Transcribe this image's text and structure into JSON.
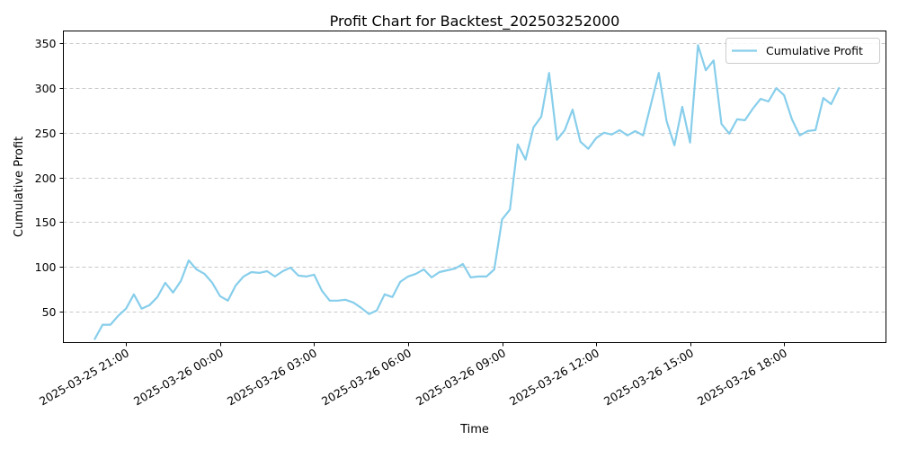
{
  "chart_data": {
    "type": "line",
    "title": "Profit Chart for Backtest_202503252000",
    "xlabel": "Time",
    "ylabel": "Cumulative Profit",
    "x_start": "2025-03-25 20:00",
    "x_step_minutes": 15,
    "xlim": [
      "2025-03-25 19:00",
      "2025-03-26 21:15"
    ],
    "ylim": [
      15,
      364
    ],
    "yticks": [
      50,
      100,
      150,
      200,
      250,
      300,
      350
    ],
    "xticks": [
      "2025-03-25 21:00",
      "2025-03-26 00:00",
      "2025-03-26 03:00",
      "2025-03-26 06:00",
      "2025-03-26 09:00",
      "2025-03-26 12:00",
      "2025-03-26 15:00",
      "2025-03-26 18:00"
    ],
    "grid": "y-dashed",
    "legend": "top-right",
    "series": [
      {
        "name": "Cumulative Profit",
        "color": "#87ceeb",
        "values": [
          19,
          35,
          35,
          45,
          53,
          69,
          53,
          57,
          66,
          82,
          71,
          84,
          107,
          97,
          92,
          82,
          67,
          62,
          79,
          89,
          94,
          93,
          95,
          89,
          95,
          99,
          90,
          89,
          91,
          73,
          62,
          62,
          63,
          60,
          54,
          47,
          51,
          69,
          66,
          83,
          89,
          92,
          97,
          88,
          94,
          96,
          98,
          103,
          88,
          89,
          89,
          97,
          153,
          164,
          237,
          220,
          256,
          268,
          317,
          242,
          253,
          276,
          240,
          232,
          244,
          250,
          248,
          253,
          247,
          252,
          247,
          282,
          317,
          263,
          236,
          279,
          239,
          348,
          320,
          331,
          260,
          249,
          265,
          264,
          277,
          288,
          285,
          300,
          292,
          265,
          247,
          252,
          253,
          289,
          282,
          300
        ]
      }
    ]
  }
}
